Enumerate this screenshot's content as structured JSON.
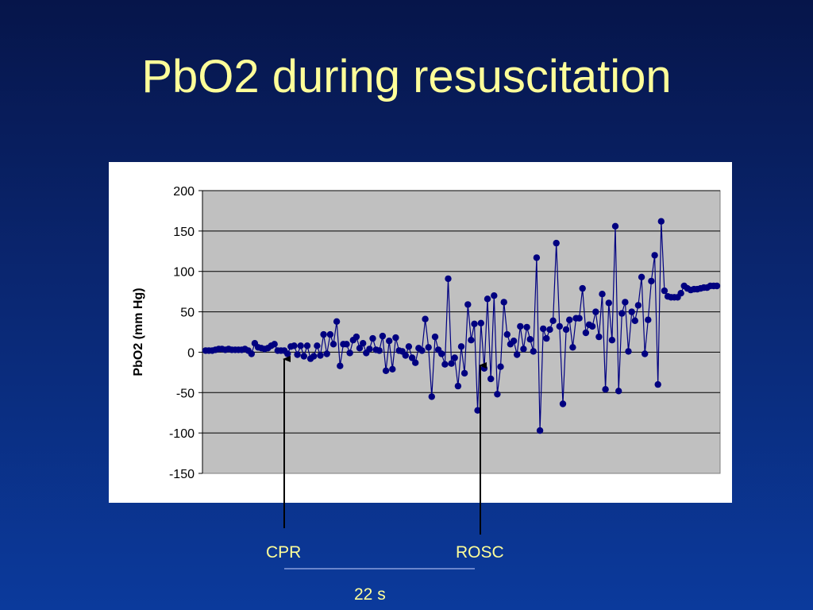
{
  "title": "PbO2 during resuscitation",
  "chart_data": {
    "type": "line",
    "title": "",
    "xlabel": "",
    "ylabel": "PbO2 (mm Hg)",
    "ylim": [
      -150,
      200
    ],
    "yticks": [
      200,
      150,
      100,
      50,
      0,
      -50,
      -100,
      -150
    ],
    "grid": "horizontal",
    "legend": "none",
    "plot_background": "#c0c0c0",
    "series": [
      {
        "color": "#000080",
        "values": [
          2,
          2,
          2,
          3,
          4,
          4,
          3,
          4,
          3,
          3,
          3,
          3,
          4,
          2,
          -2,
          11,
          6,
          5,
          4,
          5,
          8,
          10,
          2,
          2,
          2,
          -2,
          7,
          8,
          -3,
          8,
          -5,
          8,
          -8,
          -5,
          8,
          -4,
          22,
          -2,
          22,
          10,
          38,
          -17,
          10,
          10,
          -1,
          15,
          19,
          5,
          11,
          -1,
          4,
          17,
          3,
          2,
          20,
          -23,
          14,
          -21,
          18,
          2,
          1,
          -4,
          7,
          -7,
          -13,
          5,
          2,
          41,
          6,
          -55,
          19,
          3,
          -2,
          -15,
          91,
          -14,
          -7,
          -42,
          7,
          -26,
          59,
          15,
          35,
          -72,
          36,
          -20,
          66,
          -33,
          70,
          -52,
          -18,
          62,
          22,
          10,
          14,
          -3,
          32,
          4,
          31,
          16,
          1,
          117,
          -97,
          29,
          17,
          28,
          39,
          135,
          32,
          -64,
          28,
          40,
          6,
          42,
          42,
          79,
          24,
          34,
          32,
          50,
          19,
          72,
          -46,
          61,
          15,
          156,
          -48,
          48,
          62,
          1,
          50,
          39,
          58,
          93,
          -2,
          40,
          88,
          120,
          -40,
          162,
          76,
          69,
          68,
          68,
          68,
          73,
          82,
          79,
          77,
          78,
          78,
          79,
          80,
          80,
          82,
          82,
          82
        ]
      }
    ]
  },
  "annotations": {
    "cpr_label": "CPR",
    "rosc_label": "ROSC",
    "duration_label": "22 s"
  }
}
